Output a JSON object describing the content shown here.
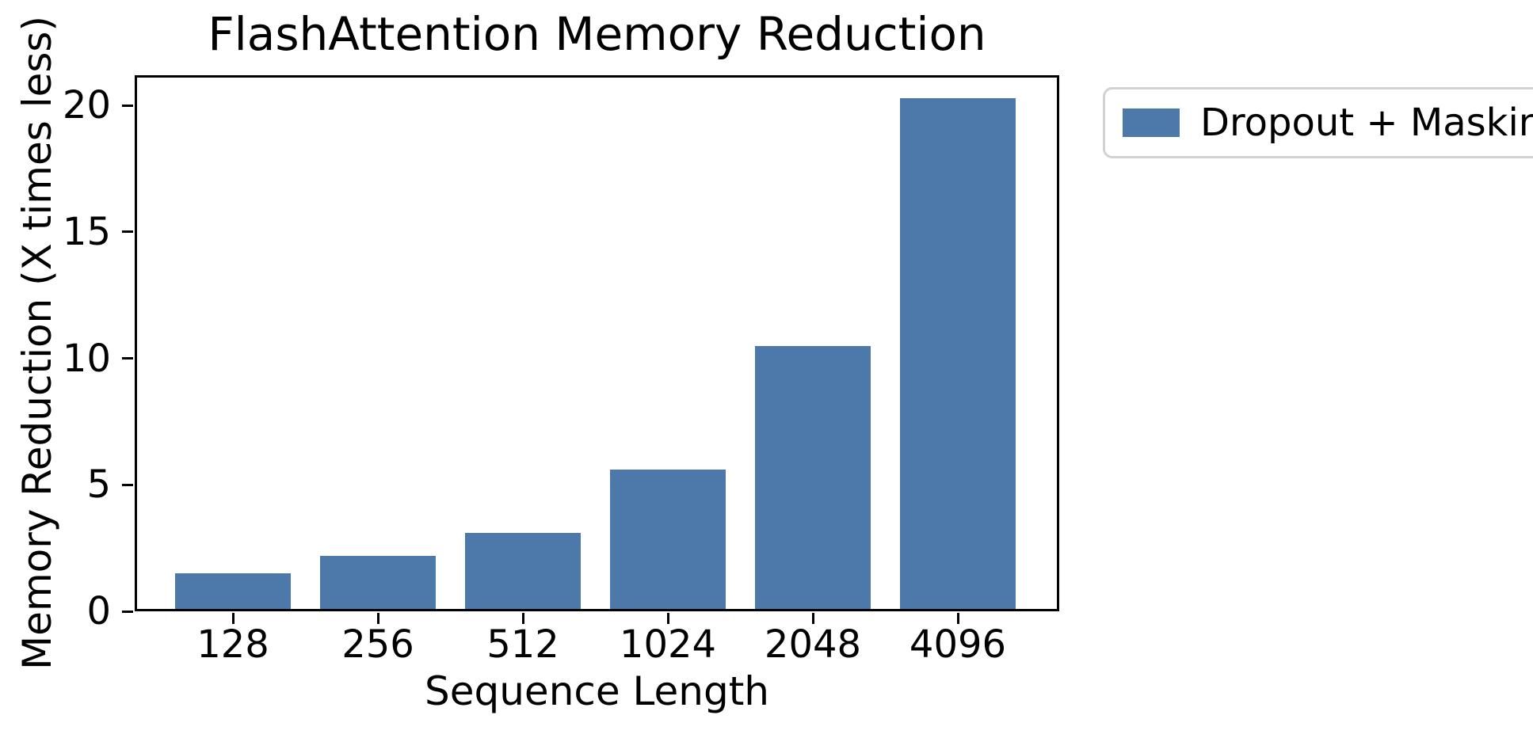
{
  "chart_data": {
    "type": "bar",
    "title": "FlashAttention Memory Reduction",
    "xlabel": "Sequence Length",
    "ylabel": "Memory Reduction (X times less)",
    "categories": [
      "128",
      "256",
      "512",
      "1024",
      "2048",
      "4096"
    ],
    "series": [
      {
        "name": "Dropout + Masking",
        "values": [
          1.5,
          2.2,
          3.1,
          5.6,
          10.5,
          20.3
        ]
      }
    ],
    "yticks": [
      0,
      5,
      10,
      15,
      20
    ],
    "ylim": [
      0,
      21.2
    ],
    "grid": false,
    "legend_position": "outside-upper-right",
    "bar_color": "#4D79AA",
    "axis_color": "#000000",
    "legend_border_color": "#d2d2d2"
  },
  "legend": {
    "items": [
      {
        "label": "Dropout + Masking",
        "color": "#4D79AA"
      }
    ]
  }
}
